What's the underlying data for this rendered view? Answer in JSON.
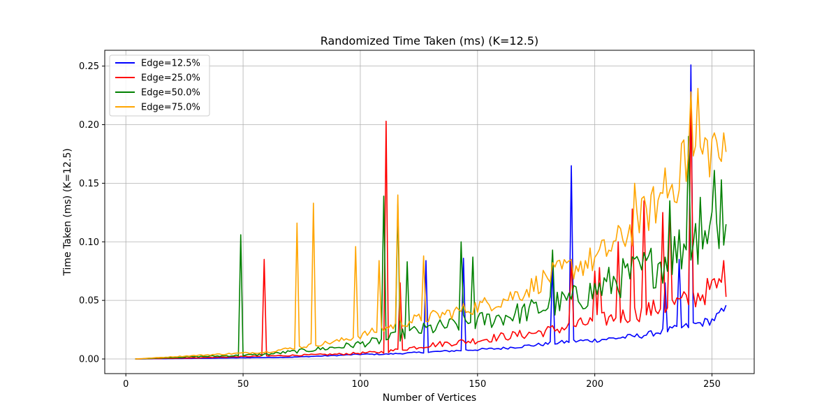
{
  "chart_data": {
    "type": "line",
    "title": "Randomized Time Taken (ms) (K=12.5)",
    "xlabel": "Number of Vertices",
    "ylabel": "Time Taken (ms) (K=12.5)",
    "xlim": [
      -9,
      268
    ],
    "ylim": [
      -0.0125,
      0.2635
    ],
    "xticks": [
      "0",
      "50",
      "100",
      "150",
      "200",
      "250"
    ],
    "yticks": [
      "0.00",
      "0.05",
      "0.10",
      "0.15",
      "0.20",
      "0.25"
    ],
    "grid": true,
    "legend_position": "top-left",
    "x_start": 4,
    "series": [
      {
        "name": "Edge=12.5%",
        "color": "#0000ff",
        "anchors": [
          [
            4,
            0.0
          ],
          [
            30,
            0.0005
          ],
          [
            50,
            0.001
          ],
          [
            70,
            0.0015
          ],
          [
            90,
            0.003
          ],
          [
            100,
            0.004
          ],
          [
            110,
            0.004
          ],
          [
            120,
            0.005
          ],
          [
            130,
            0.006
          ],
          [
            140,
            0.007
          ],
          [
            150,
            0.008
          ],
          [
            160,
            0.009
          ],
          [
            170,
            0.011
          ],
          [
            180,
            0.013
          ],
          [
            190,
            0.015
          ],
          [
            200,
            0.016
          ],
          [
            210,
            0.018
          ],
          [
            220,
            0.02
          ],
          [
            230,
            0.024
          ],
          [
            240,
            0.028
          ],
          [
            250,
            0.033
          ],
          [
            256,
            0.042
          ]
        ],
        "spikes": [
          [
            128,
            0.084
          ],
          [
            144,
            0.086
          ],
          [
            182,
            0.08
          ],
          [
            190,
            0.165
          ],
          [
            230,
            0.065
          ],
          [
            236,
            0.085
          ],
          [
            241,
            0.251
          ]
        ],
        "jitter": 0.12
      },
      {
        "name": "Edge=25.0%",
        "color": "#ff0000",
        "anchors": [
          [
            4,
            0.0
          ],
          [
            30,
            0.001
          ],
          [
            50,
            0.002
          ],
          [
            70,
            0.003
          ],
          [
            90,
            0.004
          ],
          [
            100,
            0.005
          ],
          [
            110,
            0.006
          ],
          [
            120,
            0.009
          ],
          [
            130,
            0.012
          ],
          [
            140,
            0.014
          ],
          [
            150,
            0.016
          ],
          [
            160,
            0.019
          ],
          [
            170,
            0.021
          ],
          [
            180,
            0.024
          ],
          [
            190,
            0.028
          ],
          [
            200,
            0.032
          ],
          [
            210,
            0.036
          ],
          [
            220,
            0.04
          ],
          [
            230,
            0.045
          ],
          [
            240,
            0.05
          ],
          [
            250,
            0.06
          ],
          [
            256,
            0.065
          ]
        ],
        "spikes": [
          [
            59,
            0.085
          ],
          [
            111,
            0.203
          ],
          [
            117,
            0.065
          ],
          [
            190,
            0.085
          ],
          [
            200,
            0.075
          ],
          [
            202,
            0.078
          ],
          [
            210,
            0.1
          ],
          [
            216,
            0.128
          ],
          [
            221,
            0.135
          ],
          [
            229,
            0.125
          ],
          [
            232,
            0.13
          ],
          [
            241,
            0.22
          ],
          [
            255,
            0.084
          ],
          [
            256,
            0.053
          ]
        ],
        "jitter": 0.2
      },
      {
        "name": "Edge=50.0%",
        "color": "#008000",
        "anchors": [
          [
            4,
            0.0
          ],
          [
            30,
            0.002
          ],
          [
            49,
            0.003
          ],
          [
            60,
            0.004
          ],
          [
            70,
            0.006
          ],
          [
            80,
            0.008
          ],
          [
            90,
            0.01
          ],
          [
            100,
            0.013
          ],
          [
            110,
            0.016
          ],
          [
            120,
            0.022
          ],
          [
            130,
            0.026
          ],
          [
            140,
            0.029
          ],
          [
            150,
            0.032
          ],
          [
            160,
            0.036
          ],
          [
            170,
            0.04
          ],
          [
            180,
            0.045
          ],
          [
            190,
            0.05
          ],
          [
            200,
            0.058
          ],
          [
            210,
            0.068
          ],
          [
            220,
            0.075
          ],
          [
            230,
            0.085
          ],
          [
            240,
            0.1
          ],
          [
            250,
            0.115
          ],
          [
            256,
            0.11
          ]
        ],
        "spikes": [
          [
            49,
            0.106
          ],
          [
            110,
            0.139
          ],
          [
            116,
            0.132
          ],
          [
            120,
            0.083
          ],
          [
            143,
            0.1
          ],
          [
            148,
            0.087
          ],
          [
            182,
            0.093
          ],
          [
            232,
            0.135
          ],
          [
            240,
            0.19
          ],
          [
            245,
            0.138
          ],
          [
            251,
            0.161
          ],
          [
            254,
            0.153
          ]
        ],
        "jitter": 0.25
      },
      {
        "name": "Edge=75.0%",
        "color": "#ffa500",
        "anchors": [
          [
            4,
            0.0
          ],
          [
            30,
            0.003
          ],
          [
            50,
            0.005
          ],
          [
            60,
            0.006
          ],
          [
            70,
            0.009
          ],
          [
            80,
            0.012
          ],
          [
            90,
            0.015
          ],
          [
            100,
            0.02
          ],
          [
            110,
            0.026
          ],
          [
            120,
            0.032
          ],
          [
            130,
            0.036
          ],
          [
            140,
            0.04
          ],
          [
            150,
            0.045
          ],
          [
            160,
            0.05
          ],
          [
            170,
            0.058
          ],
          [
            180,
            0.07
          ],
          [
            190,
            0.078
          ],
          [
            200,
            0.085
          ],
          [
            210,
            0.1
          ],
          [
            220,
            0.12
          ],
          [
            230,
            0.14
          ],
          [
            240,
            0.17
          ],
          [
            250,
            0.18
          ],
          [
            256,
            0.17
          ]
        ],
        "spikes": [
          [
            73,
            0.116
          ],
          [
            80,
            0.133
          ],
          [
            98,
            0.096
          ],
          [
            108,
            0.084
          ],
          [
            116,
            0.14
          ],
          [
            127,
            0.088
          ],
          [
            217,
            0.15
          ],
          [
            230,
            0.163
          ],
          [
            238,
            0.187
          ],
          [
            241,
            0.228
          ],
          [
            244,
            0.231
          ],
          [
            251,
            0.193
          ]
        ],
        "jitter": 0.15
      }
    ]
  }
}
